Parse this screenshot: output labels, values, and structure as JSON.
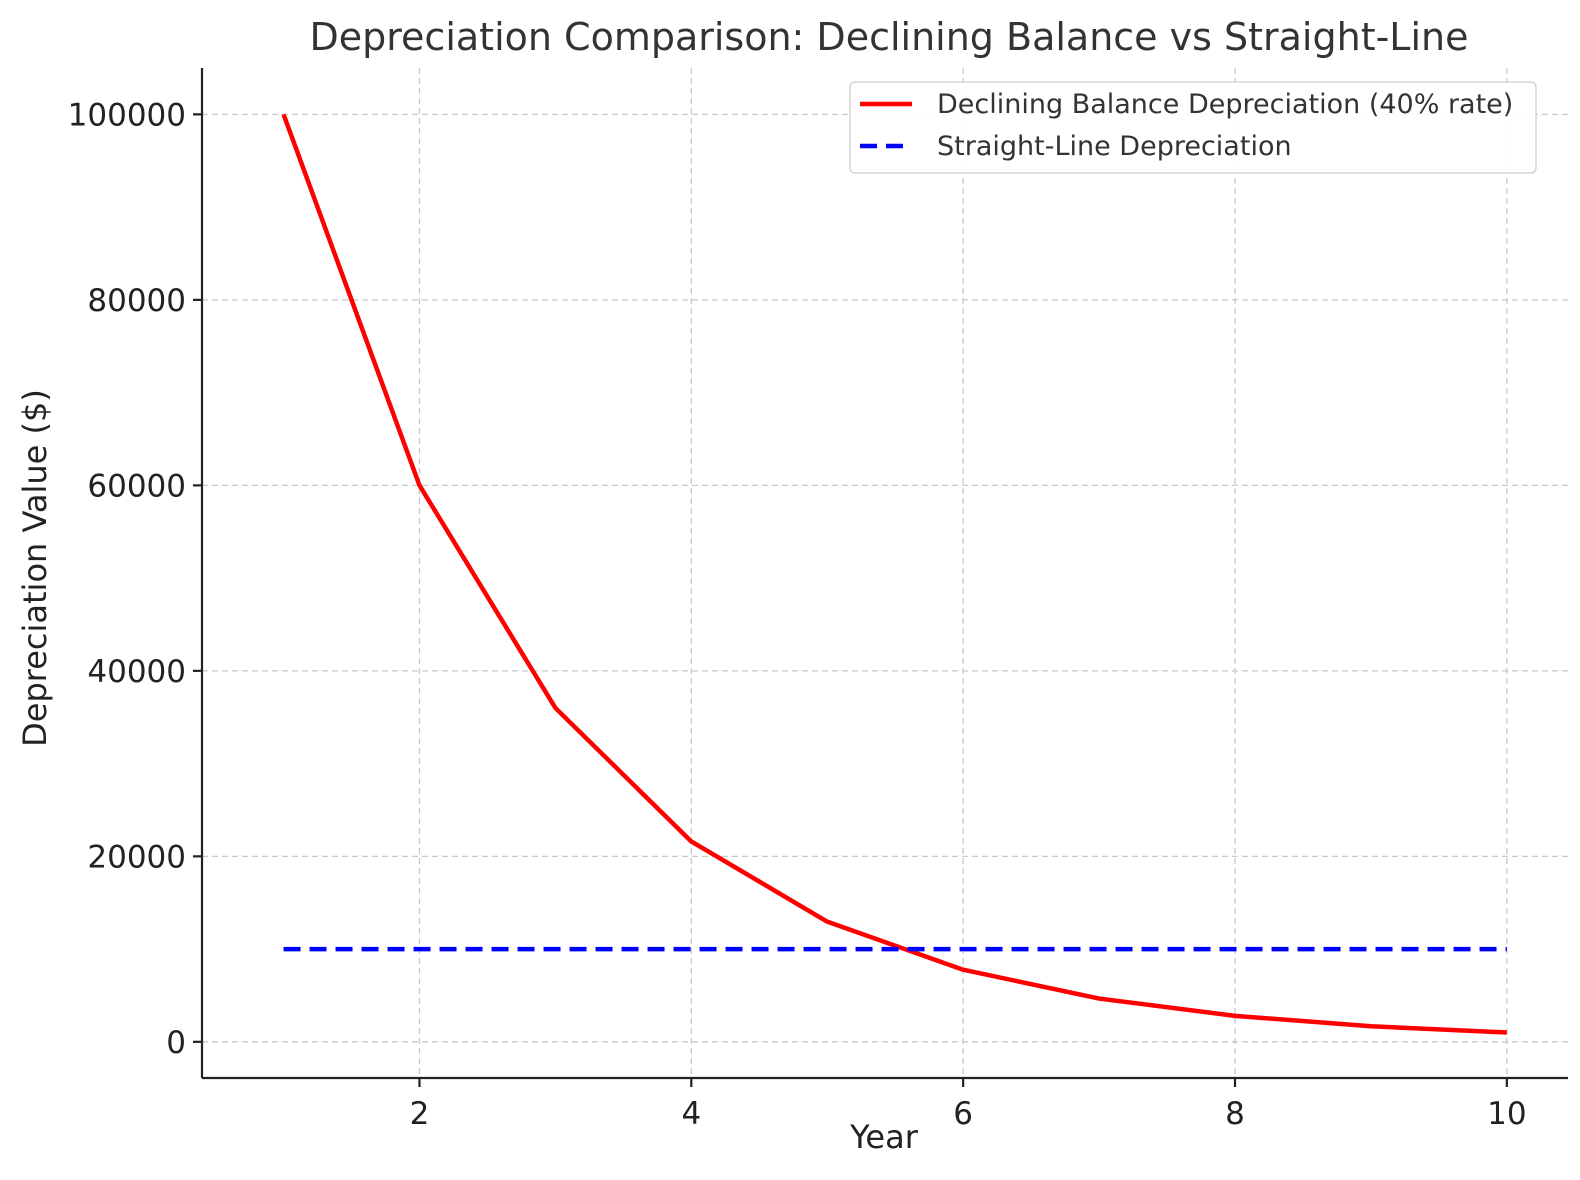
{
  "chart_data": {
    "type": "line",
    "title": "Depreciation Comparison: Declining Balance vs Straight-Line",
    "xlabel": "Year",
    "ylabel": "Depreciation Value ($)",
    "x": [
      1,
      2,
      3,
      4,
      5,
      6,
      7,
      8,
      9,
      10
    ],
    "xlim": [
      0.4,
      10.45
    ],
    "ylim": [
      -3900,
      105000
    ],
    "xticks": [
      2,
      4,
      6,
      8,
      10
    ],
    "yticks": [
      0,
      20000,
      40000,
      60000,
      80000,
      100000
    ],
    "grid": true,
    "legend_position": "top-right",
    "series": [
      {
        "name": "Declining Balance Depreciation (40% rate)",
        "color": "#ff0000",
        "style": "solid",
        "values": [
          100000,
          60000,
          36000,
          21600,
          12960,
          7776,
          4666,
          2799,
          1680,
          1008
        ]
      },
      {
        "name": "Straight-Line Depreciation",
        "color": "#0000ff",
        "style": "dashed",
        "values": [
          10000,
          10000,
          10000,
          10000,
          10000,
          10000,
          10000,
          10000,
          10000,
          10000
        ]
      }
    ]
  }
}
